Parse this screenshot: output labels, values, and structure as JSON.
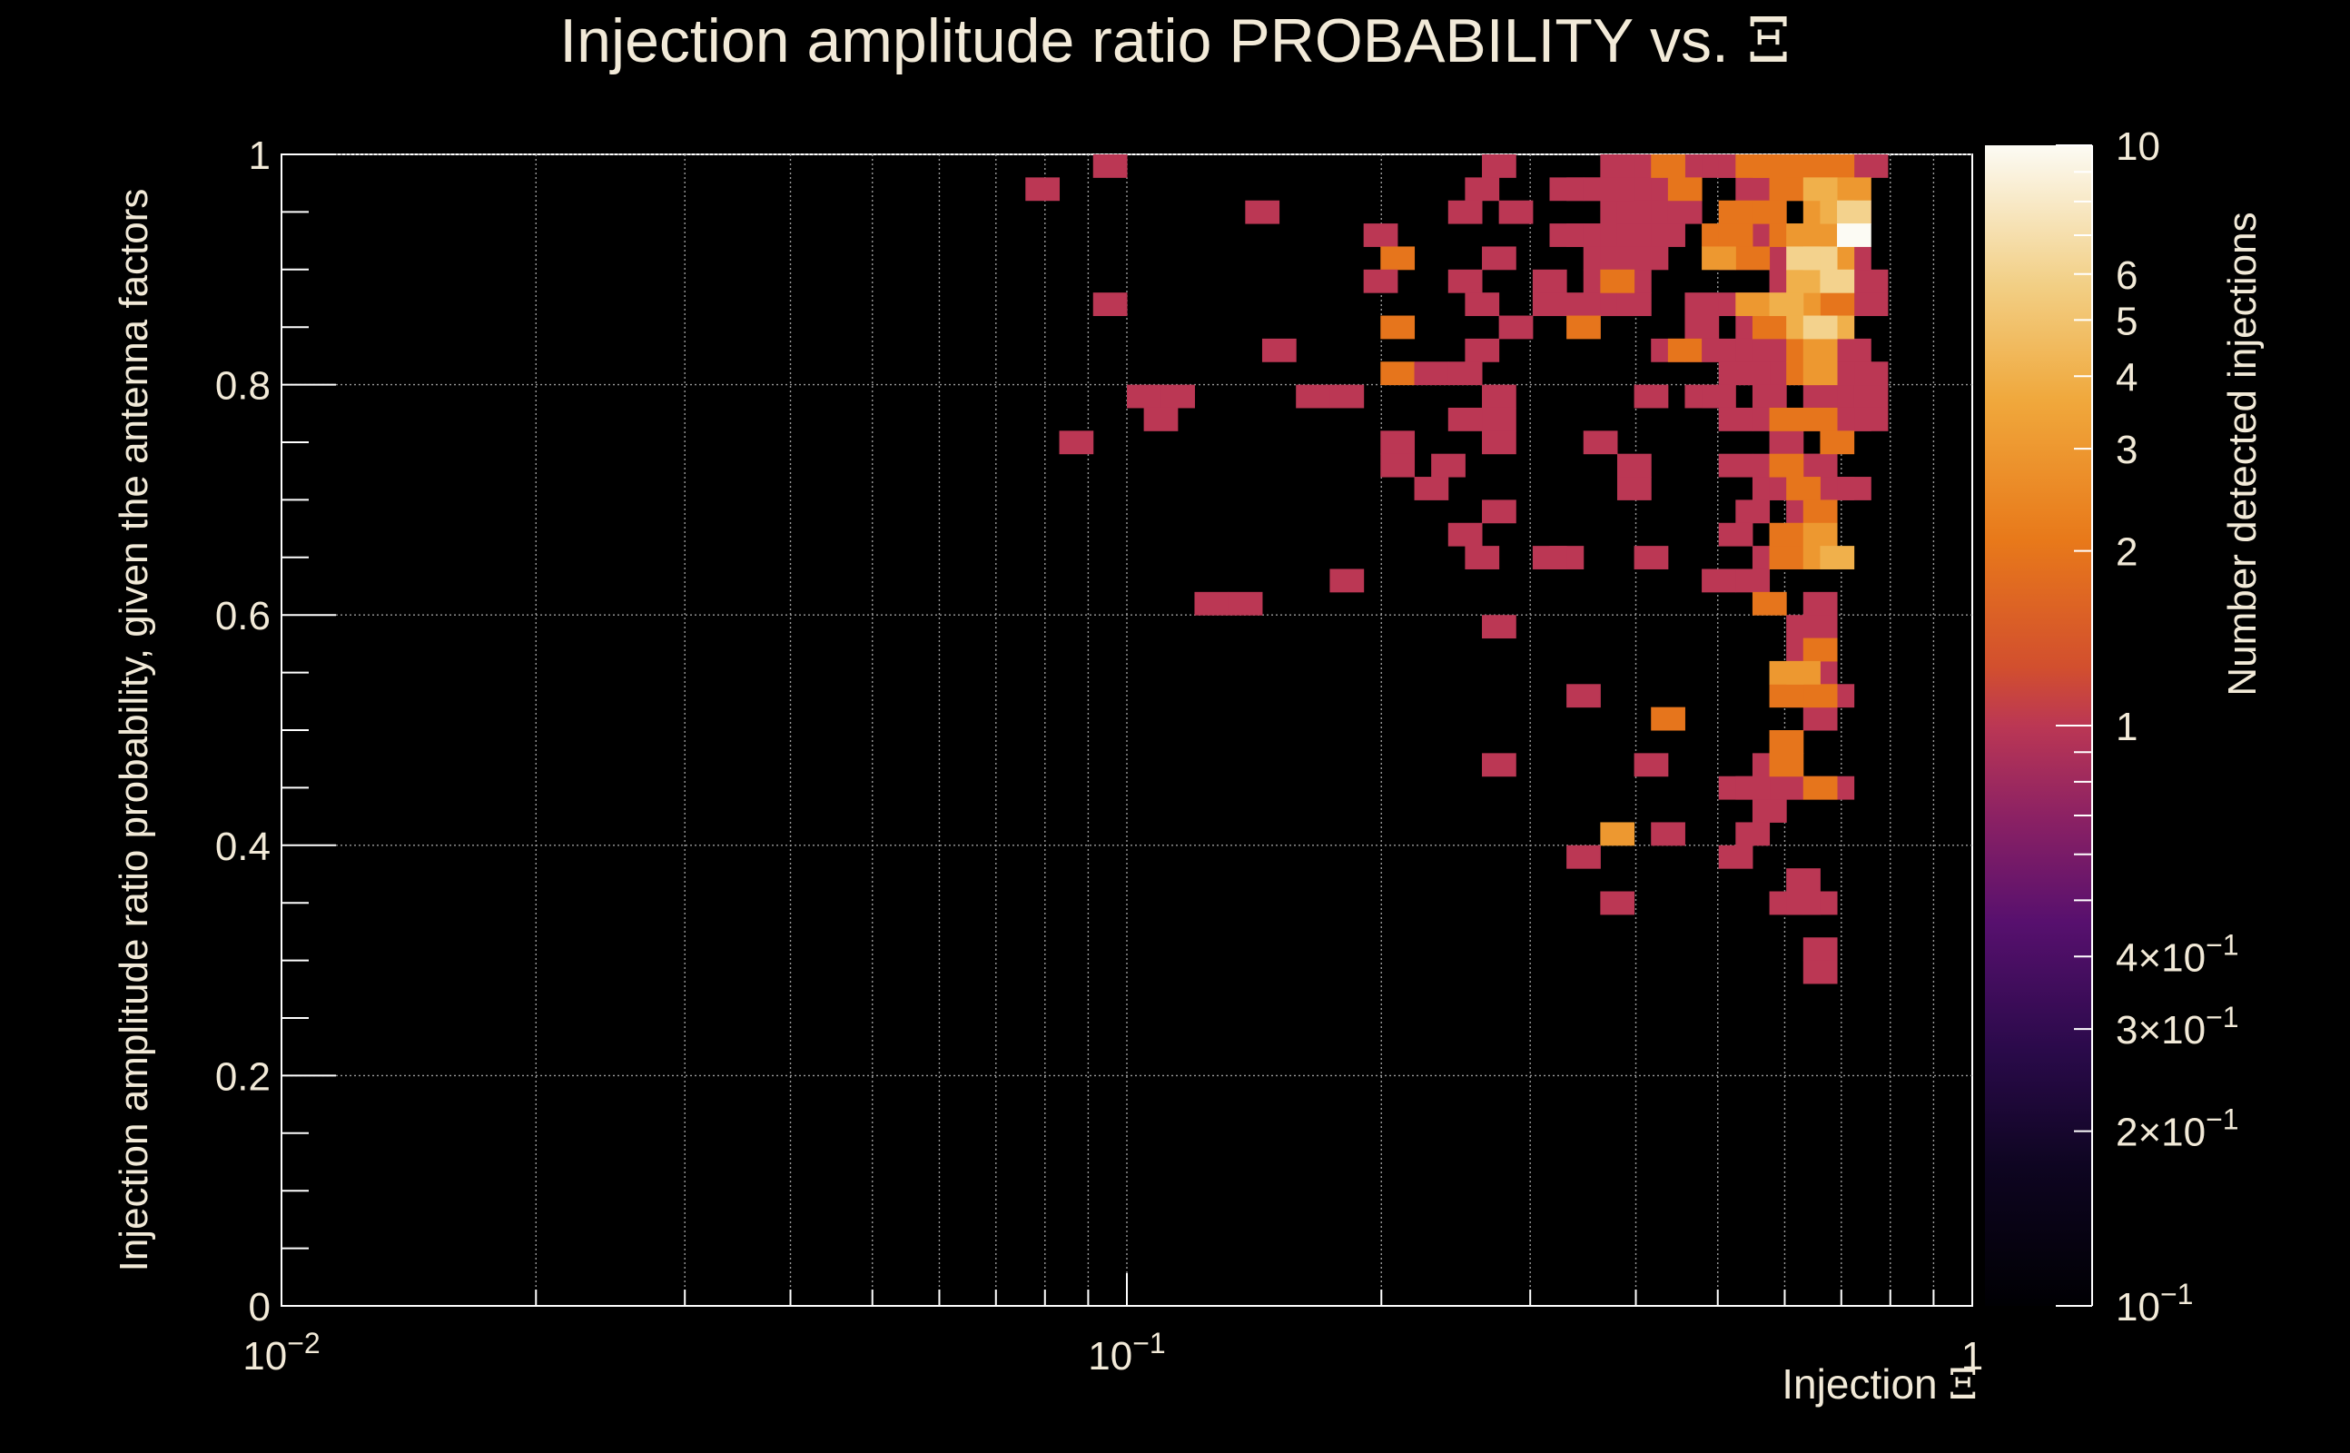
{
  "chart_data": {
    "type": "heatmap",
    "title": "Injection amplitude ratio PROBABILITY vs.",
    "title_symbol": "Ξ",
    "xlabel": "Injection",
    "xlabel_symbol": "Ξ",
    "ylabel": "Injection amplitude ratio probability, given the antenna factors",
    "zlabel": "Number detected injections",
    "x_scale": "log",
    "xlim": [
      0.01,
      1
    ],
    "ylim": [
      0,
      1
    ],
    "z_scale": "log",
    "zlim": [
      0.1,
      10
    ],
    "grid": true,
    "x_ticks": [
      {
        "base": "10",
        "exp": "−2"
      },
      {
        "base": "10",
        "exp": "−1"
      },
      {
        "base": "1",
        "exp": ""
      }
    ],
    "y_ticks": [
      "0",
      "0.2",
      "0.4",
      "0.6",
      "0.8",
      "1"
    ],
    "z_ticks": [
      {
        "value": 10,
        "label": "10",
        "exp": ""
      },
      {
        "value": 6,
        "label": "6",
        "exp": ""
      },
      {
        "value": 5,
        "label": "5",
        "exp": ""
      },
      {
        "value": 4,
        "label": "4",
        "exp": ""
      },
      {
        "value": 3,
        "label": "3",
        "exp": ""
      },
      {
        "value": 2,
        "label": "2",
        "exp": ""
      },
      {
        "value": 1,
        "label": "1",
        "exp": ""
      },
      {
        "value": 0.4,
        "label": "4×10",
        "exp": "−1"
      },
      {
        "value": 0.3,
        "label": "3×10",
        "exp": "−1"
      },
      {
        "value": 0.2,
        "label": "2×10",
        "exp": "−1"
      },
      {
        "value": 0.1,
        "label": "10",
        "exp": "−1"
      }
    ],
    "bins": {
      "x_bins_log": 50,
      "y_bins": 50
    },
    "cell_fields": [
      "log10_x_low",
      "y_low",
      "count"
    ],
    "cells": [
      [
        -1.04,
        0.98,
        1
      ],
      [
        -1.12,
        0.96,
        1
      ],
      [
        -0.86,
        0.94,
        1
      ],
      [
        -0.72,
        0.92,
        1
      ],
      [
        -0.7,
        0.9,
        2
      ],
      [
        -0.72,
        0.88,
        1
      ],
      [
        -0.62,
        0.88,
        1
      ],
      [
        -1.04,
        0.86,
        1
      ],
      [
        -0.7,
        0.84,
        2
      ],
      [
        -0.84,
        0.82,
        1
      ],
      [
        -0.7,
        0.8,
        2
      ],
      [
        -0.66,
        0.8,
        1
      ],
      [
        -0.62,
        0.8,
        1
      ],
      [
        -1.0,
        0.78,
        1
      ],
      [
        -0.96,
        0.78,
        1
      ],
      [
        -0.8,
        0.78,
        1
      ],
      [
        -0.76,
        0.78,
        1
      ],
      [
        -0.98,
        0.76,
        1
      ],
      [
        -1.08,
        0.74,
        1
      ],
      [
        -0.7,
        0.74,
        1
      ],
      [
        -0.7,
        0.72,
        1
      ],
      [
        -0.66,
        0.7,
        1
      ],
      [
        -0.62,
        0.66,
        1
      ],
      [
        -0.76,
        0.62,
        1
      ],
      [
        -0.92,
        0.6,
        1
      ],
      [
        -0.88,
        0.6,
        1
      ],
      [
        -0.58,
        0.98,
        1
      ],
      [
        -0.6,
        0.96,
        1
      ],
      [
        -0.62,
        0.94,
        1
      ],
      [
        -0.56,
        0.94,
        1
      ],
      [
        -0.58,
        0.9,
        1
      ],
      [
        -0.6,
        0.86,
        1
      ],
      [
        -0.56,
        0.84,
        1
      ],
      [
        -0.52,
        0.88,
        1
      ],
      [
        -0.52,
        0.86,
        1
      ],
      [
        -0.6,
        0.82,
        1
      ],
      [
        -0.58,
        0.78,
        1
      ],
      [
        -0.58,
        0.76,
        1
      ],
      [
        -0.58,
        0.74,
        1
      ],
      [
        -0.62,
        0.76,
        1
      ],
      [
        -0.64,
        0.72,
        1
      ],
      [
        -0.58,
        0.68,
        1
      ],
      [
        -0.6,
        0.64,
        1
      ],
      [
        -0.5,
        0.64,
        1
      ],
      [
        -0.46,
        0.74,
        1
      ],
      [
        -0.58,
        0.58,
        1
      ],
      [
        -0.48,
        0.52,
        1
      ],
      [
        -0.58,
        0.46,
        1
      ],
      [
        -0.4,
        0.46,
        1
      ],
      [
        -0.38,
        0.4,
        1
      ],
      [
        -0.48,
        0.38,
        1
      ],
      [
        -0.44,
        0.34,
        1
      ],
      [
        -0.5,
        0.92,
        1
      ],
      [
        -0.48,
        0.92,
        1
      ],
      [
        -0.46,
        0.92,
        1
      ],
      [
        -0.46,
        0.9,
        1
      ],
      [
        -0.44,
        0.9,
        1
      ],
      [
        -0.44,
        0.92,
        1
      ],
      [
        -0.44,
        0.94,
        1
      ],
      [
        -0.42,
        0.94,
        1
      ],
      [
        -0.42,
        0.96,
        1
      ],
      [
        -0.4,
        0.96,
        1
      ],
      [
        -0.38,
        0.96,
        1
      ],
      [
        -0.4,
        0.94,
        1
      ],
      [
        -0.38,
        0.94,
        1
      ],
      [
        -0.36,
        0.94,
        1
      ],
      [
        -0.44,
        0.96,
        1
      ],
      [
        -0.42,
        0.98,
        1
      ],
      [
        -0.48,
        0.96,
        1
      ],
      [
        -0.5,
        0.96,
        1
      ],
      [
        -0.46,
        0.96,
        1
      ],
      [
        -0.42,
        0.92,
        1
      ],
      [
        -0.4,
        0.92,
        1
      ],
      [
        -0.44,
        0.98,
        1
      ],
      [
        -0.42,
        0.88,
        1
      ],
      [
        -0.46,
        0.88,
        1
      ],
      [
        -0.46,
        0.86,
        1
      ],
      [
        -0.44,
        0.86,
        1
      ],
      [
        -0.42,
        0.86,
        1
      ],
      [
        -0.48,
        0.86,
        1
      ],
      [
        -0.4,
        0.9,
        1
      ],
      [
        -0.38,
        0.82,
        1
      ],
      [
        -0.34,
        0.82,
        1
      ],
      [
        -0.34,
        0.86,
        1
      ],
      [
        -0.34,
        0.84,
        1
      ],
      [
        -0.36,
        0.98,
        1
      ],
      [
        -0.38,
        0.92,
        1
      ],
      [
        -0.4,
        0.78,
        1
      ],
      [
        -0.34,
        0.78,
        1
      ],
      [
        -0.42,
        0.72,
        1
      ],
      [
        -0.42,
        0.7,
        1
      ],
      [
        -0.52,
        0.64,
        1
      ],
      [
        -0.4,
        0.64,
        1
      ],
      [
        -0.44,
        0.88,
        2
      ],
      [
        -0.48,
        0.84,
        2
      ],
      [
        -0.38,
        0.98,
        2
      ],
      [
        -0.36,
        0.96,
        2
      ],
      [
        -0.36,
        0.82,
        2
      ],
      [
        -0.38,
        0.5,
        2
      ],
      [
        -0.32,
        0.98,
        1
      ],
      [
        -0.3,
        0.98,
        1
      ],
      [
        -0.28,
        0.96,
        1
      ],
      [
        -0.28,
        0.94,
        1
      ],
      [
        -0.28,
        0.92,
        1
      ],
      [
        -0.26,
        0.92,
        1
      ],
      [
        -0.26,
        0.9,
        1
      ],
      [
        -0.3,
        0.9,
        1
      ],
      [
        -0.24,
        0.9,
        1
      ],
      [
        -0.24,
        0.88,
        1
      ],
      [
        -0.26,
        0.86,
        1
      ],
      [
        -0.3,
        0.86,
        1
      ],
      [
        -0.28,
        0.84,
        1
      ],
      [
        -0.24,
        0.84,
        1
      ],
      [
        -0.32,
        0.82,
        1
      ],
      [
        -0.28,
        0.82,
        1
      ],
      [
        -0.26,
        0.82,
        1
      ],
      [
        -0.24,
        0.8,
        1
      ],
      [
        -0.28,
        0.8,
        1
      ],
      [
        -0.3,
        0.8,
        1
      ],
      [
        -0.32,
        0.78,
        1
      ],
      [
        -0.26,
        0.78,
        1
      ],
      [
        -0.3,
        0.76,
        1
      ],
      [
        -0.26,
        0.76,
        1
      ],
      [
        -0.22,
        0.76,
        1
      ],
      [
        -0.24,
        0.74,
        1
      ],
      [
        -0.22,
        0.72,
        1
      ],
      [
        -0.26,
        0.72,
        1
      ],
      [
        -0.3,
        0.72,
        1
      ],
      [
        -0.26,
        0.7,
        1
      ],
      [
        -0.24,
        0.7,
        1
      ],
      [
        -0.28,
        0.68,
        1
      ],
      [
        -0.22,
        0.68,
        1
      ],
      [
        -0.22,
        0.66,
        1
      ],
      [
        -0.3,
        0.66,
        1
      ],
      [
        -0.26,
        0.64,
        1
      ],
      [
        -0.32,
        0.62,
        1
      ],
      [
        -0.28,
        0.62,
        1
      ],
      [
        -0.22,
        0.64,
        1
      ],
      [
        -0.2,
        0.6,
        1
      ],
      [
        -0.22,
        0.58,
        1
      ],
      [
        -0.2,
        0.58,
        1
      ],
      [
        -0.22,
        0.56,
        1
      ],
      [
        -0.2,
        0.54,
        1
      ],
      [
        -0.22,
        0.52,
        1
      ],
      [
        -0.18,
        0.52,
        1
      ],
      [
        -0.2,
        0.5,
        1
      ],
      [
        -0.26,
        0.46,
        1
      ],
      [
        -0.22,
        0.44,
        1
      ],
      [
        -0.24,
        0.44,
        1
      ],
      [
        -0.3,
        0.44,
        1
      ],
      [
        -0.28,
        0.44,
        1
      ],
      [
        -0.18,
        0.44,
        1
      ],
      [
        -0.26,
        0.42,
        1
      ],
      [
        -0.28,
        0.4,
        1
      ],
      [
        -0.3,
        0.38,
        1
      ],
      [
        -0.22,
        0.36,
        1
      ],
      [
        -0.2,
        0.34,
        1
      ],
      [
        -0.24,
        0.34,
        1
      ],
      [
        -0.22,
        0.34,
        1
      ],
      [
        -0.2,
        0.3,
        1
      ],
      [
        -0.2,
        0.28,
        1
      ],
      [
        -0.16,
        0.82,
        1
      ],
      [
        -0.16,
        0.8,
        1
      ],
      [
        -0.16,
        0.78,
        1
      ],
      [
        -0.16,
        0.76,
        1
      ],
      [
        -0.14,
        0.78,
        1
      ],
      [
        -0.14,
        0.76,
        1
      ],
      [
        -0.14,
        0.8,
        1
      ],
      [
        -0.14,
        0.88,
        1
      ],
      [
        -0.14,
        0.86,
        1
      ],
      [
        -0.14,
        0.98,
        1
      ],
      [
        -0.18,
        0.96,
        1
      ],
      [
        -0.16,
        0.94,
        1
      ],
      [
        -0.16,
        0.9,
        1
      ],
      [
        -0.18,
        0.92,
        1
      ],
      [
        -0.2,
        0.86,
        1
      ],
      [
        -0.18,
        0.84,
        1
      ],
      [
        -0.18,
        0.8,
        1
      ],
      [
        -0.2,
        0.78,
        1
      ],
      [
        -0.18,
        0.76,
        1
      ],
      [
        -0.2,
        0.72,
        1
      ],
      [
        -0.18,
        0.7,
        1
      ],
      [
        -0.16,
        0.7,
        1
      ],
      [
        -0.26,
        0.98,
        2
      ],
      [
        -0.28,
        0.98,
        2
      ],
      [
        -0.24,
        0.98,
        2
      ],
      [
        -0.22,
        0.98,
        2
      ],
      [
        -0.3,
        0.94,
        2
      ],
      [
        -0.32,
        0.92,
        2
      ],
      [
        -0.3,
        0.92,
        2
      ],
      [
        -0.28,
        0.9,
        2
      ],
      [
        -0.24,
        0.96,
        2
      ],
      [
        -0.22,
        0.96,
        2
      ],
      [
        -0.2,
        0.98,
        2
      ],
      [
        -0.18,
        0.98,
        2
      ],
      [
        -0.26,
        0.84,
        2
      ],
      [
        -0.22,
        0.82,
        2
      ],
      [
        -0.2,
        0.88,
        2
      ],
      [
        -0.22,
        0.8,
        2
      ],
      [
        -0.24,
        0.76,
        2
      ],
      [
        -0.2,
        0.76,
        2
      ],
      [
        -0.18,
        0.74,
        2
      ],
      [
        -0.24,
        0.72,
        2
      ],
      [
        -0.22,
        0.7,
        2
      ],
      [
        -0.2,
        0.68,
        2
      ],
      [
        -0.24,
        0.66,
        2
      ],
      [
        -0.24,
        0.64,
        2
      ],
      [
        -0.24,
        0.48,
        2
      ],
      [
        -0.24,
        0.46,
        2
      ],
      [
        -0.2,
        0.56,
        2
      ],
      [
        -0.2,
        0.52,
        2
      ],
      [
        -0.24,
        0.52,
        2
      ],
      [
        -0.2,
        0.44,
        2
      ],
      [
        -0.26,
        0.6,
        2
      ],
      [
        -0.18,
        0.86,
        2
      ],
      [
        -0.26,
        0.94,
        2
      ],
      [
        -0.24,
        0.92,
        2
      ],
      [
        -0.32,
        0.9,
        3
      ],
      [
        -0.28,
        0.86,
        3
      ],
      [
        -0.22,
        0.92,
        3
      ],
      [
        -0.2,
        0.92,
        3
      ],
      [
        -0.2,
        0.94,
        3
      ],
      [
        -0.22,
        0.86,
        3
      ],
      [
        -0.16,
        0.96,
        3
      ],
      [
        -0.18,
        0.9,
        3
      ],
      [
        -0.2,
        0.8,
        3
      ],
      [
        -0.2,
        0.66,
        3
      ],
      [
        -0.2,
        0.64,
        3
      ],
      [
        -0.24,
        0.54,
        3
      ],
      [
        -0.22,
        0.54,
        3
      ],
      [
        -0.2,
        0.82,
        3
      ],
      [
        -0.44,
        0.4,
        3
      ],
      [
        -0.18,
        0.94,
        4
      ],
      [
        -0.24,
        0.86,
        4
      ],
      [
        -0.22,
        0.88,
        4
      ],
      [
        -0.18,
        0.84,
        4
      ],
      [
        -0.22,
        0.84,
        4
      ],
      [
        -0.18,
        0.64,
        4
      ],
      [
        -0.2,
        0.96,
        4
      ],
      [
        -0.2,
        0.9,
        6
      ],
      [
        -0.16,
        0.94,
        6
      ],
      [
        -0.18,
        0.88,
        6
      ],
      [
        -0.2,
        0.84,
        6
      ],
      [
        -0.22,
        0.9,
        6
      ],
      [
        -0.16,
        0.92,
        10
      ]
    ]
  }
}
